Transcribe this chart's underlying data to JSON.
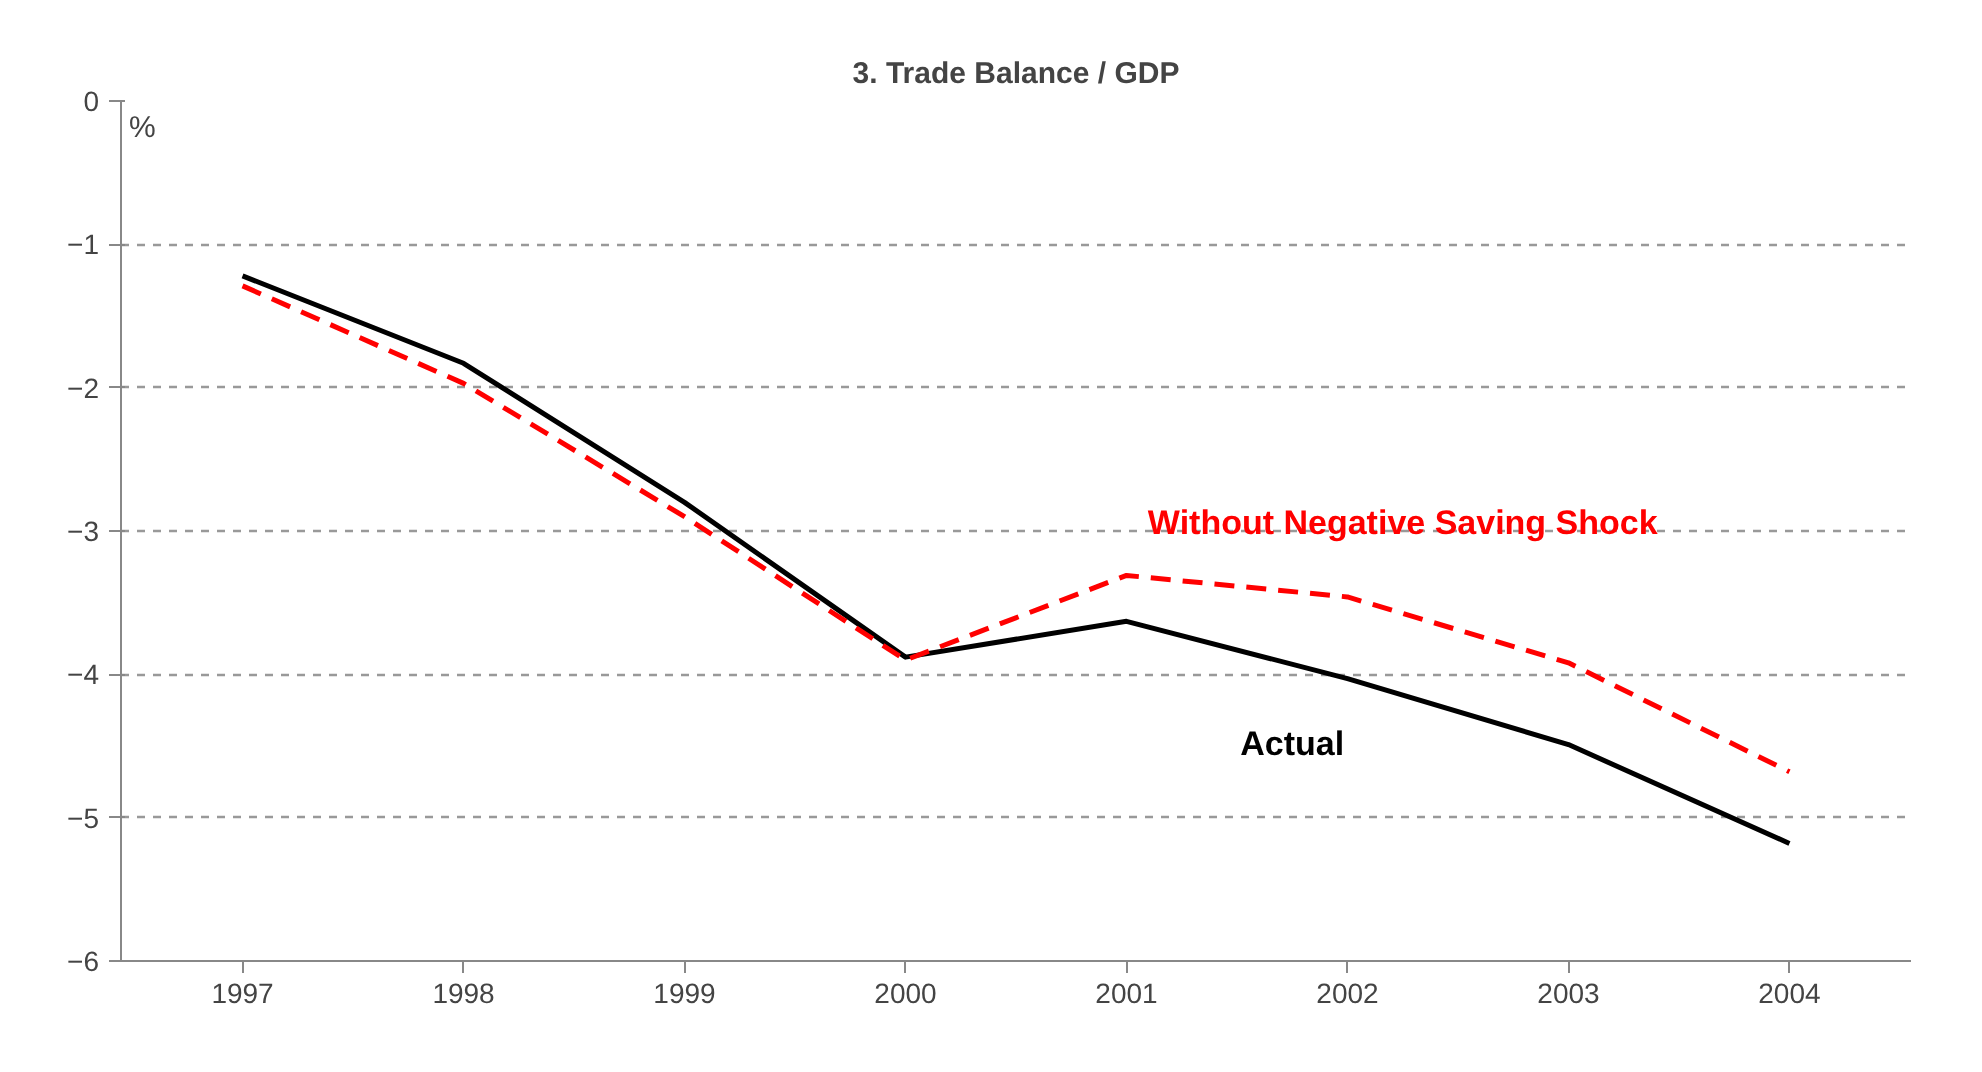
{
  "chart_data": {
    "type": "line",
    "title": "3. Trade Balance / GDP",
    "ylabel": "%",
    "categories": [
      "1997",
      "1998",
      "1999",
      "2000",
      "2001",
      "2002",
      "2003",
      "2004"
    ],
    "series": [
      {
        "name": "Actual",
        "color": "#000000",
        "line_style": "solid",
        "values": [
          -1.22,
          -1.83,
          -2.8,
          -3.88,
          -3.63,
          -4.03,
          -4.49,
          -5.18
        ]
      },
      {
        "name": "Without Negative Saving Shock",
        "color": "#ff0000",
        "line_style": "dashed",
        "values": [
          -1.29,
          -1.97,
          -2.9,
          -3.9,
          -3.31,
          -3.46,
          -3.92,
          -4.68
        ]
      }
    ],
    "ylim": [
      -6,
      0
    ],
    "yticks": [
      -6,
      -5,
      -4,
      -3,
      -2,
      -1,
      0
    ],
    "grid": "y",
    "marker": "none"
  }
}
